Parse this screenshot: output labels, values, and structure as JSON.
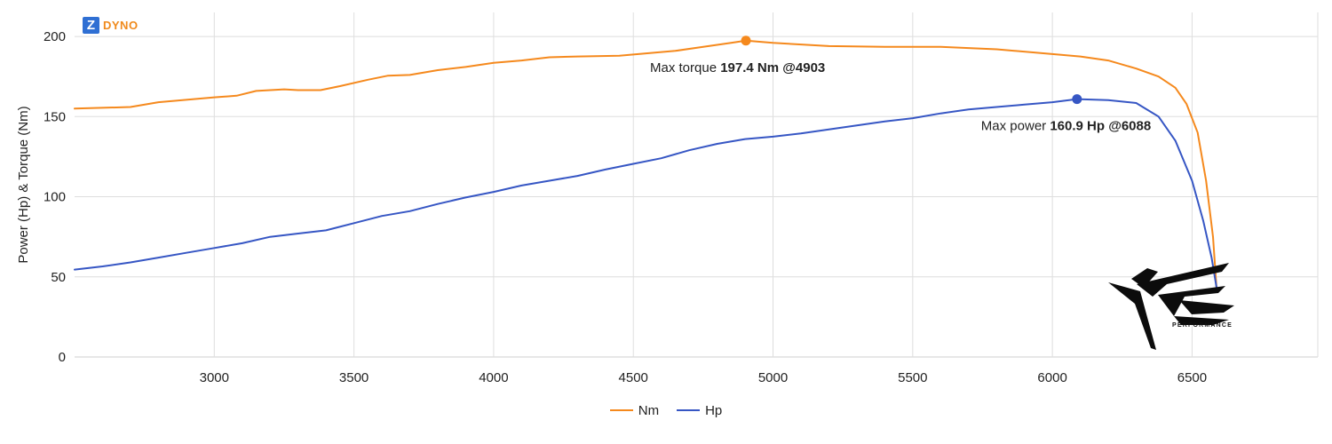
{
  "brand": {
    "badge": "Z",
    "name": "DYNO"
  },
  "watermark": {
    "text": "PERFORMANCE"
  },
  "chart_data": {
    "type": "line",
    "title": "",
    "xlabel": "",
    "ylabel": "Power (Hp) & Torque (Nm)",
    "xlim": [
      2500,
      6950
    ],
    "ylim": [
      0,
      215
    ],
    "x_ticks": [
      3000,
      3500,
      4000,
      4500,
      5000,
      5500,
      6000,
      6500
    ],
    "y_ticks": [
      0,
      50,
      100,
      150,
      200
    ],
    "grid": true,
    "legend_position": "bottom",
    "series": [
      {
        "name": "Nm",
        "color": "#f5891d",
        "points": [
          [
            2500,
            155
          ],
          [
            2700,
            156
          ],
          [
            2800,
            159
          ],
          [
            2900,
            160.5
          ],
          [
            3000,
            162
          ],
          [
            3080,
            163
          ],
          [
            3150,
            166
          ],
          [
            3250,
            167
          ],
          [
            3300,
            166.5
          ],
          [
            3380,
            166.5
          ],
          [
            3450,
            169
          ],
          [
            3550,
            173
          ],
          [
            3620,
            175.5
          ],
          [
            3700,
            176
          ],
          [
            3800,
            179
          ],
          [
            3900,
            181
          ],
          [
            4000,
            183.5
          ],
          [
            4100,
            185
          ],
          [
            4200,
            187
          ],
          [
            4300,
            187.5
          ],
          [
            4450,
            188
          ],
          [
            4550,
            189.5
          ],
          [
            4650,
            191
          ],
          [
            4750,
            193.5
          ],
          [
            4850,
            196
          ],
          [
            4903,
            197.4
          ],
          [
            5000,
            196
          ],
          [
            5200,
            194
          ],
          [
            5400,
            193.5
          ],
          [
            5600,
            193.5
          ],
          [
            5800,
            192
          ],
          [
            6000,
            189
          ],
          [
            6100,
            187.5
          ],
          [
            6200,
            185
          ],
          [
            6300,
            180
          ],
          [
            6380,
            175
          ],
          [
            6440,
            168
          ],
          [
            6480,
            158
          ],
          [
            6520,
            140
          ],
          [
            6550,
            110
          ],
          [
            6575,
            75
          ],
          [
            6588,
            42
          ]
        ],
        "annotation": {
          "prefix": "Max torque ",
          "value": "197.4 Nm @4903",
          "x": 4903,
          "y": 197.4
        }
      },
      {
        "name": "Hp",
        "color": "#3656c4",
        "points": [
          [
            2500,
            54.5
          ],
          [
            2600,
            56.5
          ],
          [
            2700,
            59
          ],
          [
            2800,
            62
          ],
          [
            2900,
            65
          ],
          [
            3000,
            68
          ],
          [
            3100,
            71
          ],
          [
            3200,
            75
          ],
          [
            3300,
            77
          ],
          [
            3400,
            79
          ],
          [
            3500,
            83.5
          ],
          [
            3600,
            88
          ],
          [
            3700,
            91
          ],
          [
            3800,
            95.5
          ],
          [
            3900,
            99.5
          ],
          [
            4000,
            103
          ],
          [
            4100,
            107
          ],
          [
            4200,
            110
          ],
          [
            4300,
            113
          ],
          [
            4400,
            117
          ],
          [
            4500,
            120.5
          ],
          [
            4600,
            124
          ],
          [
            4700,
            129
          ],
          [
            4800,
            133
          ],
          [
            4900,
            136
          ],
          [
            5000,
            137.5
          ],
          [
            5100,
            139.5
          ],
          [
            5200,
            142
          ],
          [
            5300,
            144.5
          ],
          [
            5400,
            147
          ],
          [
            5500,
            149
          ],
          [
            5600,
            152
          ],
          [
            5700,
            154.5
          ],
          [
            5800,
            156
          ],
          [
            5900,
            157.5
          ],
          [
            6000,
            159
          ],
          [
            6088,
            160.9
          ],
          [
            6200,
            160.3
          ],
          [
            6300,
            158.5
          ],
          [
            6380,
            150
          ],
          [
            6440,
            135
          ],
          [
            6500,
            110
          ],
          [
            6540,
            85
          ],
          [
            6570,
            62
          ],
          [
            6588,
            43
          ]
        ],
        "annotation": {
          "prefix": "Max power ",
          "value": "160.9 Hp @6088",
          "x": 6088,
          "y": 160.9
        }
      }
    ]
  }
}
